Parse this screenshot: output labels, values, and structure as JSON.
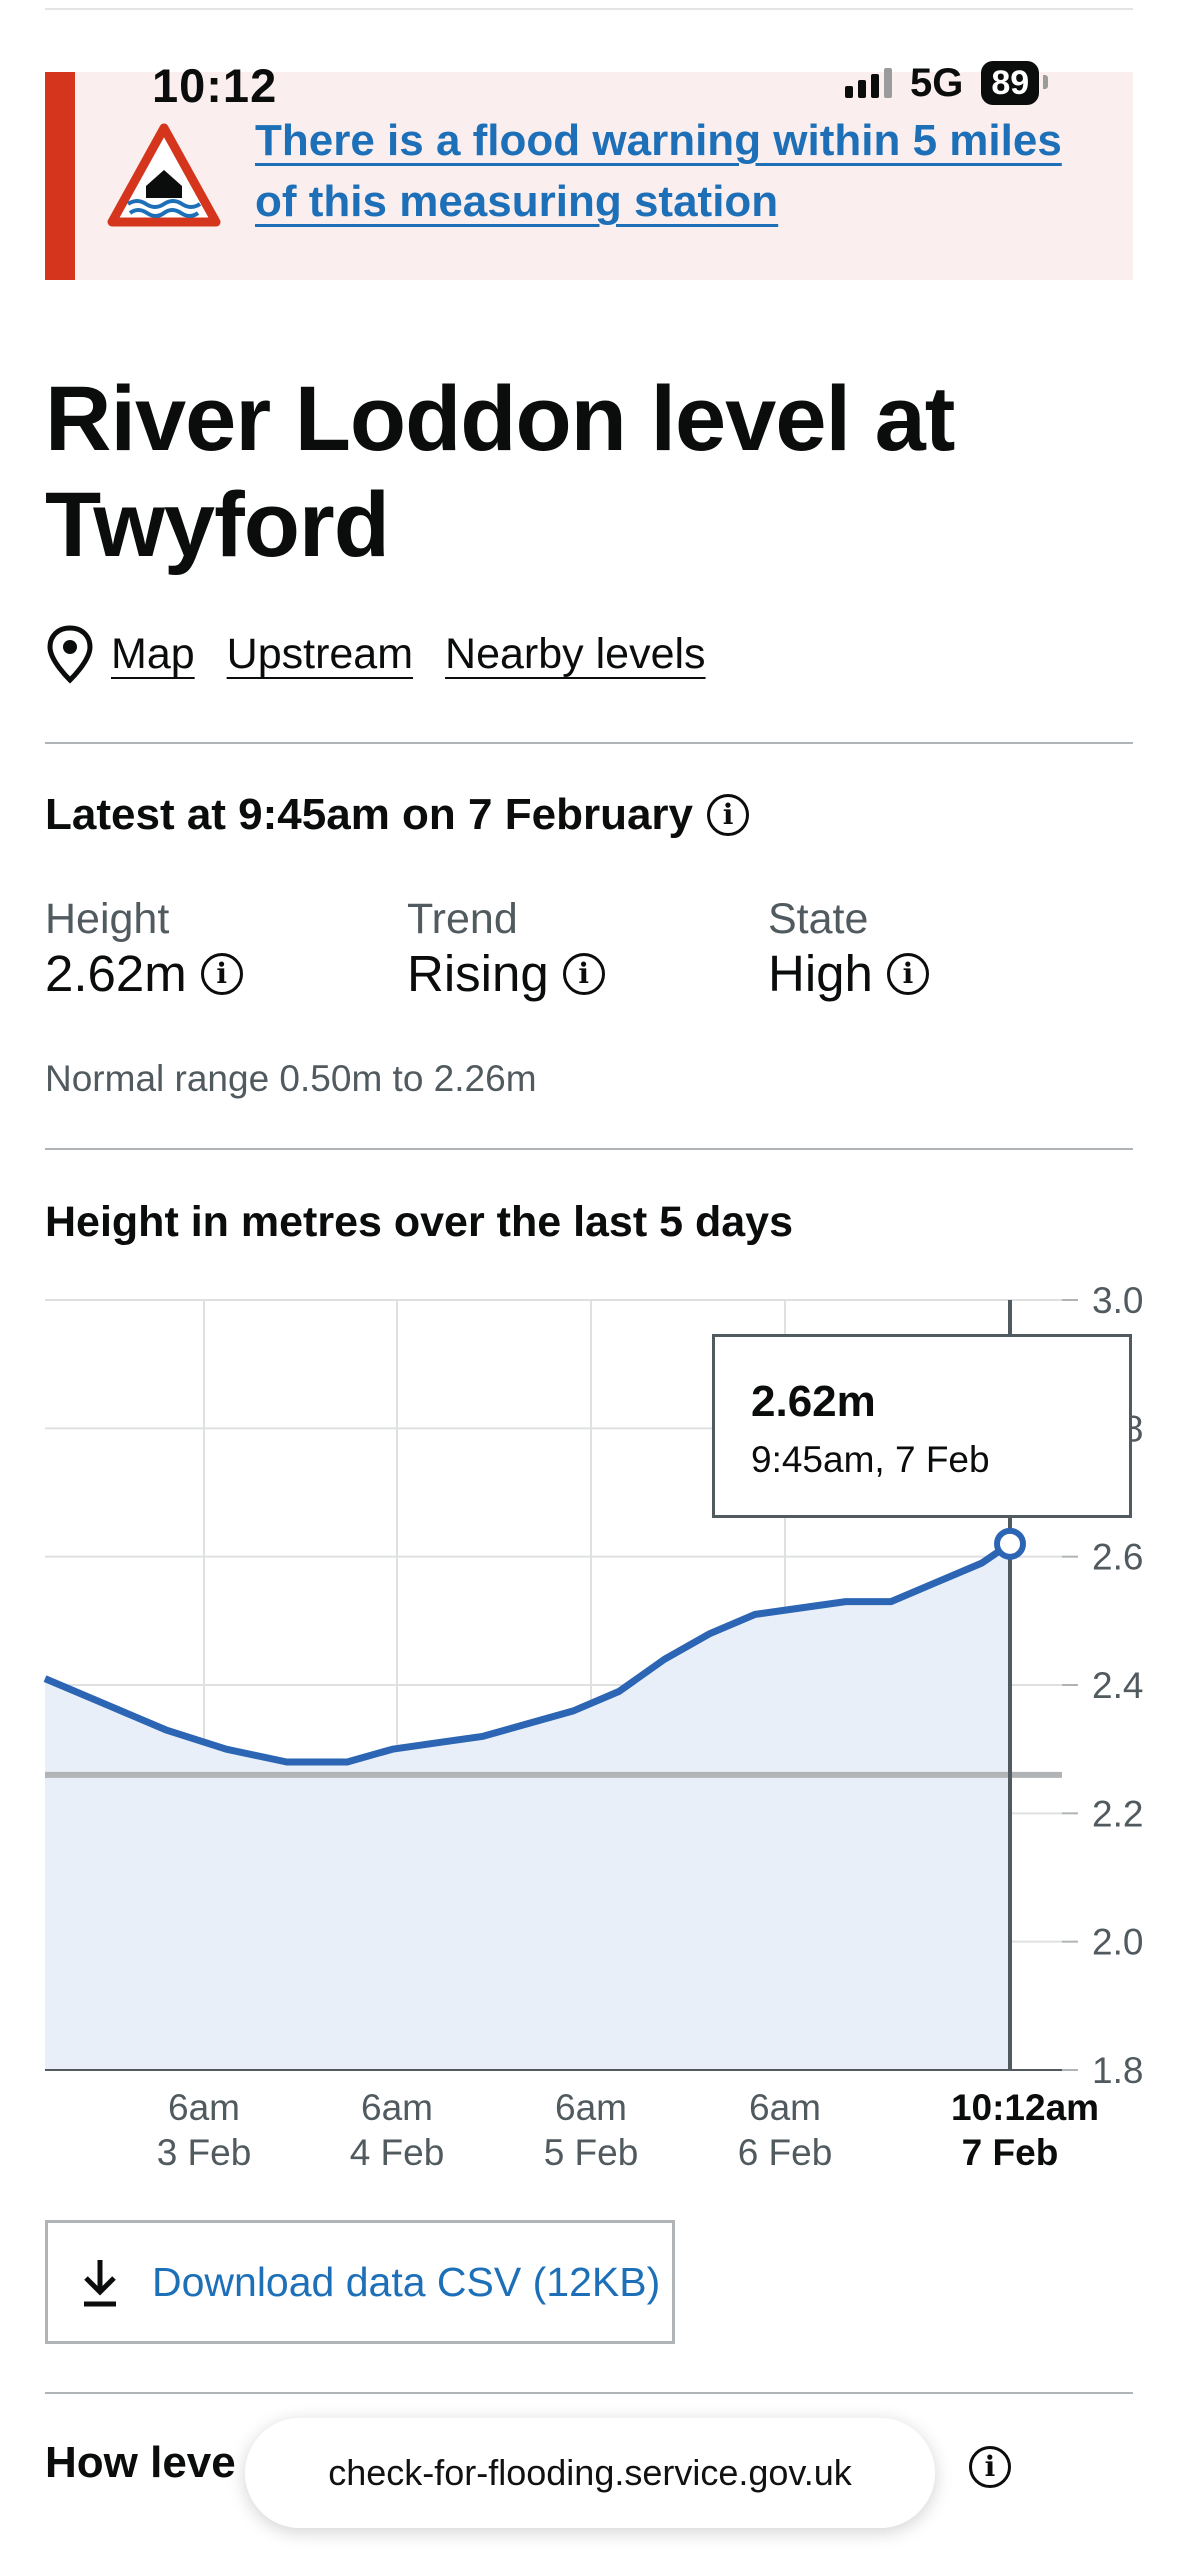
{
  "status_bar": {
    "time": "10:12",
    "network": "5G",
    "battery": "89"
  },
  "warning": {
    "link_text": "There is a flood warning within 5 miles of this measuring station",
    "icon": "flood-warning-icon",
    "color": "#d4351c"
  },
  "page": {
    "title": "River Loddon level at Twyford",
    "nav": {
      "map": "Map",
      "upstream": "Upstream",
      "nearby": "Nearby levels"
    }
  },
  "latest": {
    "heading": "Latest at 9:45am on 7 February",
    "height_label": "Height",
    "height_value": "2.62m",
    "trend_label": "Trend",
    "trend_value": "Rising",
    "state_label": "State",
    "state_value": "High",
    "normal_range": "Normal range 0.50m to 2.26m"
  },
  "chart_title": "Height in metres over the last 5 days",
  "chart_data": {
    "type": "area",
    "title": "Height in metres over the last 5 days",
    "xlabel": "",
    "ylabel": "",
    "ylim": [
      1.8,
      3.0
    ],
    "y_ticks": [
      "3.0",
      "2.8",
      "2.6",
      "2.4",
      "2.2",
      "2.0",
      "1.8"
    ],
    "x_ticks": [
      {
        "line1": "6am",
        "line2": "3 Feb"
      },
      {
        "line1": "6am",
        "line2": "4 Feb"
      },
      {
        "line1": "6am",
        "line2": "5 Feb"
      },
      {
        "line1": "6am",
        "line2": "6 Feb"
      },
      {
        "line1": "10:12am",
        "line2": "7 Feb"
      }
    ],
    "threshold": 2.26,
    "series": [
      {
        "points": [
          [
            "2 Feb 02:00",
            2.41
          ],
          [
            "2 Feb 10:00",
            2.37
          ],
          [
            "2 Feb 18:00",
            2.33
          ],
          [
            "3 Feb 02:00",
            2.3
          ],
          [
            "3 Feb 10:00",
            2.28
          ],
          [
            "3 Feb 18:00",
            2.28
          ],
          [
            "4 Feb 00:00",
            2.3
          ],
          [
            "4 Feb 06:00",
            2.31
          ],
          [
            "4 Feb 12:00",
            2.32
          ],
          [
            "4 Feb 18:00",
            2.34
          ],
          [
            "5 Feb 00:00",
            2.36
          ],
          [
            "5 Feb 06:00",
            2.39
          ],
          [
            "5 Feb 12:00",
            2.44
          ],
          [
            "5 Feb 18:00",
            2.48
          ],
          [
            "6 Feb 00:00",
            2.51
          ],
          [
            "6 Feb 06:00",
            2.52
          ],
          [
            "6 Feb 12:00",
            2.53
          ],
          [
            "6 Feb 18:00",
            2.53
          ],
          [
            "7 Feb 00:00",
            2.56
          ],
          [
            "7 Feb 06:00",
            2.59
          ],
          [
            "7 Feb 09:45",
            2.62
          ]
        ]
      }
    ],
    "tooltip": {
      "value": "2.62m",
      "time": "9:45am, 7 Feb"
    },
    "colors": {
      "line": "#2b65b4",
      "fill": "#e8eff8",
      "threshold": "#b1b4b6"
    }
  },
  "download": {
    "label": "Download data CSV (12KB)"
  },
  "how": {
    "heading": "How leve",
    "url": "check-for-flooding.service.gov.uk"
  }
}
